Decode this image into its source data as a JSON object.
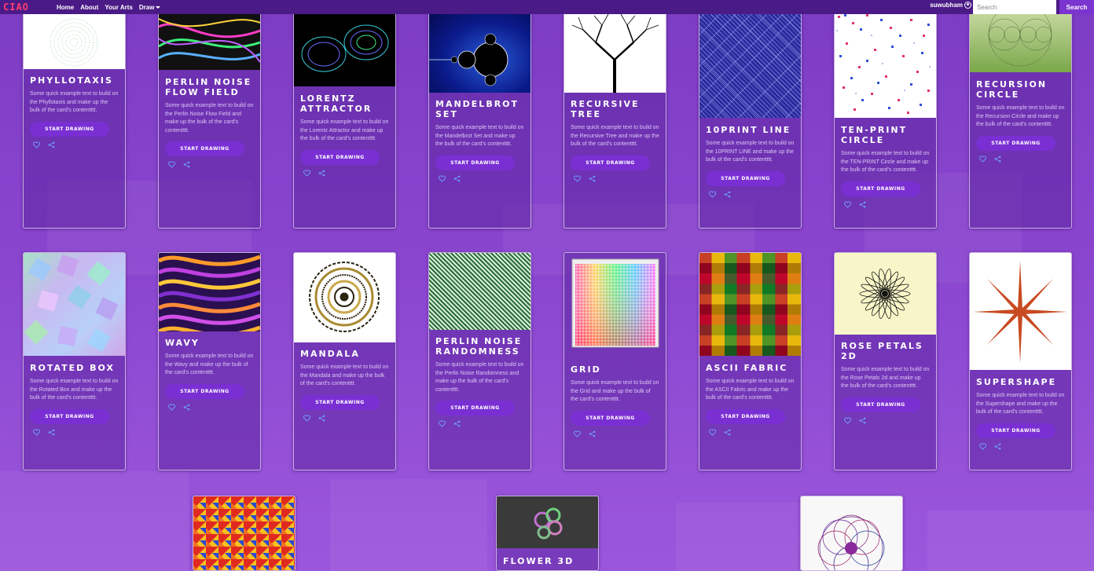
{
  "nav": {
    "brand": "CIAO",
    "links": [
      "Home",
      "About",
      "Your Arts"
    ],
    "draw": "Draw",
    "username": "suwubham",
    "search_placeholder": "Search",
    "search_button": "Search"
  },
  "common": {
    "button_label": "START DRAWING"
  },
  "cards": [
    {
      "title": "PHYLLOTAXIS",
      "text": "Some quick example text to build on the Phyllotaxis and make up the bulk of the card's contentttt."
    },
    {
      "title": "PERLIN NOISE FLOW FIELD",
      "text": "Some quick example text to build on the Perlin Noise Flow Field and make up the bulk of the card's contentttt."
    },
    {
      "title": "LORENTZ ATTRACTOR",
      "text": "Some quick example text to build on the Lorentz Attractor and make up the bulk of the card's contentttt."
    },
    {
      "title": "MANDELBROT SET",
      "text": "Some quick example text to build on the Mandelbrot Set and make up the bulk of the card's contentttt."
    },
    {
      "title": "RECURSIVE TREE",
      "text": "Some quick example text to build on the Recursive Tree and make up the bulk of the card's contentttt."
    },
    {
      "title": "10PRINT LINE",
      "text": "Some quick example text to build on the 10PRINT LINE and make up the bulk of the card's contentttt."
    },
    {
      "title": "TEN-PRINT CIRCLE",
      "text": "Some quick example text to build on the TEN-PRINT Circle and make up the bulk of the card's contentttt."
    },
    {
      "title": "RECURSION CIRCLE",
      "text": "Some quick example text to build on the Recursion Circle and make up the bulk of the card's contentttt."
    },
    {
      "title": "ROTATED BOX",
      "text": "Some quick example text to build on the Rotated Box and make up the bulk of the card's contentttt."
    },
    {
      "title": "WAVY",
      "text": "Some quick example text to build on the Wavy and make up the bulk of the card's contentttt."
    },
    {
      "title": "MANDALA",
      "text": "Some quick example text to build on the Mandala and make up the bulk of the card's contentttt."
    },
    {
      "title": "PERLIN NOISE RANDOMNESS",
      "text": "Some quick example text to build on the Perlin Noise Randomness and make up the bulk of the card's contentttt."
    },
    {
      "title": "GRID",
      "text": "Some quick example text to build on the Grid and make up the bulk of the card's contentttt."
    },
    {
      "title": "ASCII FABRIC",
      "text": "Some quick example text to build on the ASCII Fabric and make up the bulk of the card's contentttt."
    },
    {
      "title": "ROSE PETALS 2D",
      "text": "Some quick example text to build on the Rose Petals 2d and make up the bulk of the card's contentttt."
    },
    {
      "title": "SUPERSHAPE",
      "text": "Some quick example text to build on the Supershape and make up the bulk of the card's contentttt."
    },
    {
      "title": "",
      "text": ""
    },
    {
      "title": "FLOWER 3D",
      "text": ""
    },
    {
      "title": "",
      "text": ""
    }
  ]
}
